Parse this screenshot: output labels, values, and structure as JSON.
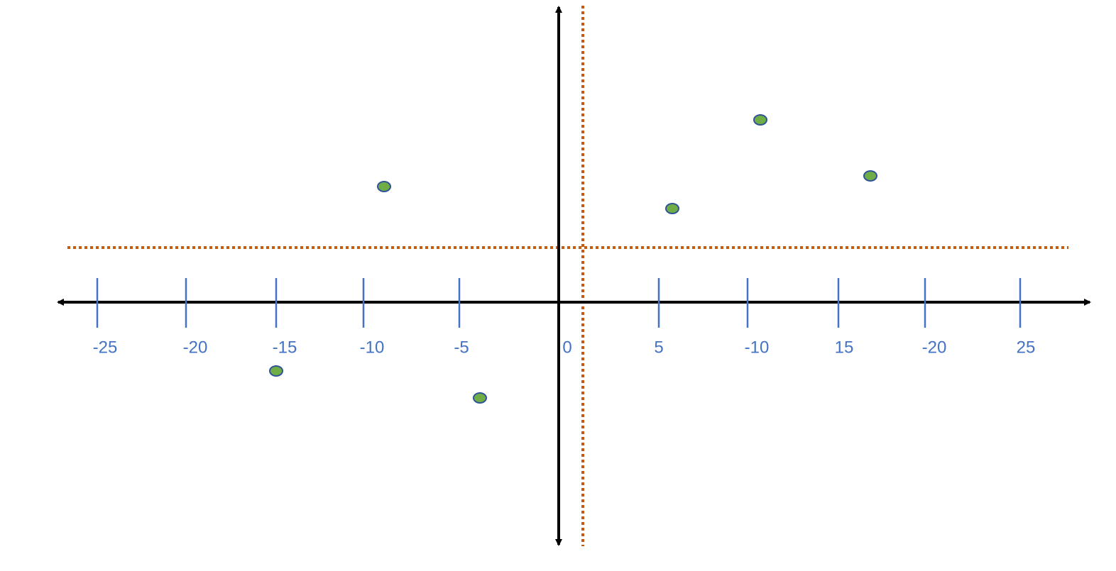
{
  "axis": {
    "labels": [
      "-25",
      "-20",
      "-15",
      "-10",
      "-5",
      "0",
      "5",
      "-10",
      "15",
      "-20",
      "25"
    ]
  }
}
